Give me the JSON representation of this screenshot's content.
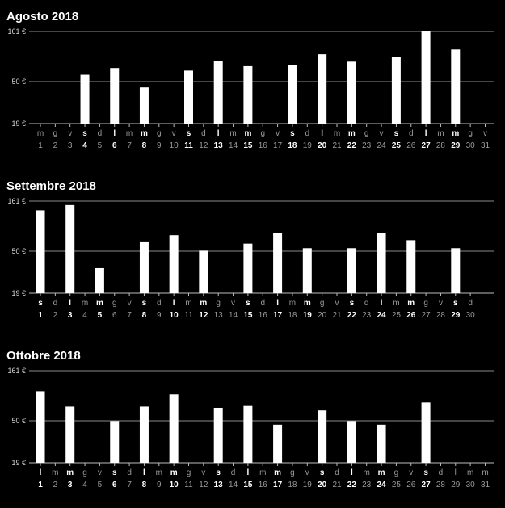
{
  "y_ticks": [
    "161 €",
    "50 €",
    "19 €"
  ],
  "chart_data": [
    {
      "type": "bar",
      "title": "Agosto 2018",
      "ylim": [
        19,
        161
      ],
      "y_ticks": [
        161,
        50,
        19
      ],
      "scale": "log",
      "days": [
        1,
        2,
        3,
        4,
        5,
        6,
        7,
        8,
        9,
        10,
        11,
        12,
        13,
        14,
        15,
        16,
        17,
        18,
        19,
        20,
        21,
        22,
        23,
        24,
        25,
        26,
        27,
        28,
        29,
        30,
        31
      ],
      "weekdays": [
        "m",
        "g",
        "v",
        "s",
        "d",
        "l",
        "m",
        "m",
        "g",
        "v",
        "s",
        "d",
        "l",
        "m",
        "m",
        "g",
        "v",
        "s",
        "d",
        "l",
        "m",
        "m",
        "g",
        "v",
        "s",
        "d",
        "l",
        "m",
        "m",
        "g",
        "v"
      ],
      "values": [
        null,
        null,
        null,
        59,
        null,
        69,
        null,
        44,
        null,
        null,
        65,
        null,
        81,
        null,
        72,
        null,
        null,
        74,
        null,
        95,
        null,
        80,
        null,
        null,
        90,
        null,
        161,
        null,
        106,
        null,
        null
      ],
      "highlighted": [
        4,
        6,
        8,
        11,
        13,
        15,
        18,
        20,
        22,
        25,
        27,
        29
      ]
    },
    {
      "type": "bar",
      "title": "Settembre 2018",
      "ylim": [
        19,
        161
      ],
      "y_ticks": [
        161,
        50,
        19
      ],
      "scale": "log",
      "days": [
        1,
        2,
        3,
        4,
        5,
        6,
        7,
        8,
        9,
        10,
        11,
        12,
        13,
        14,
        15,
        16,
        17,
        18,
        19,
        20,
        21,
        22,
        23,
        24,
        25,
        26,
        27,
        28,
        29,
        30
      ],
      "weekdays": [
        "s",
        "d",
        "l",
        "m",
        "m",
        "g",
        "v",
        "s",
        "d",
        "l",
        "m",
        "m",
        "g",
        "v",
        "s",
        "d",
        "l",
        "m",
        "m",
        "g",
        "v",
        "s",
        "d",
        "l",
        "m",
        "m",
        "g",
        "v",
        "s",
        "d"
      ],
      "values": [
        130,
        null,
        147,
        null,
        34,
        null,
        null,
        62,
        null,
        73,
        null,
        51,
        null,
        null,
        60,
        null,
        77,
        null,
        54,
        null,
        null,
        54,
        null,
        77,
        null,
        65,
        null,
        null,
        54,
        null
      ],
      "highlighted": [
        1,
        3,
        5,
        8,
        10,
        12,
        15,
        17,
        19,
        22,
        24,
        26,
        29
      ]
    },
    {
      "type": "bar",
      "title": "Ottobre 2018",
      "ylim": [
        19,
        161
      ],
      "y_ticks": [
        161,
        50,
        19
      ],
      "scale": "log",
      "days": [
        1,
        2,
        3,
        4,
        5,
        6,
        7,
        8,
        9,
        10,
        11,
        12,
        13,
        14,
        15,
        16,
        17,
        18,
        19,
        20,
        21,
        22,
        23,
        24,
        25,
        26,
        27,
        28,
        29,
        30,
        31
      ],
      "weekdays": [
        "l",
        "m",
        "m",
        "g",
        "v",
        "s",
        "d",
        "l",
        "m",
        "m",
        "g",
        "v",
        "s",
        "d",
        "l",
        "m",
        "m",
        "g",
        "v",
        "s",
        "d",
        "l",
        "m",
        "m",
        "g",
        "v",
        "s",
        "d",
        "l",
        "m",
        "m"
      ],
      "values": [
        100,
        null,
        70,
        null,
        null,
        50,
        null,
        70,
        null,
        93,
        null,
        null,
        68,
        null,
        71,
        null,
        46,
        null,
        null,
        64,
        null,
        50,
        null,
        46,
        null,
        null,
        77,
        null,
        null,
        null,
        null
      ],
      "highlighted": [
        1,
        3,
        6,
        8,
        10,
        13,
        15,
        17,
        20,
        22,
        24,
        27
      ]
    }
  ]
}
